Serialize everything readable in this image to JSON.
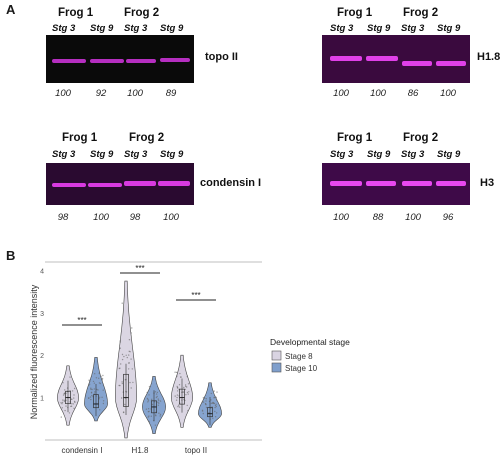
{
  "panel_a_label": "A",
  "panel_b_label": "B",
  "blots": [
    {
      "id": "topo",
      "frog1": "Frog 1",
      "frog2": "Frog 2",
      "lanes": [
        "Stg 3",
        "Stg 9",
        "Stg 3",
        "Stg 9"
      ],
      "protein": "topo II",
      "values": [
        "100",
        "92",
        "100",
        "89"
      ],
      "band_color": "#c030c8"
    },
    {
      "id": "h18",
      "frog1": "Frog 1",
      "frog2": "Frog 2",
      "lanes": [
        "Stg 3",
        "Stg 9",
        "Stg 3",
        "Stg 9"
      ],
      "protein": "H1.8",
      "values": [
        "100",
        "100",
        "86",
        "100"
      ],
      "band_color": "#e040e8"
    },
    {
      "id": "condensin",
      "frog1": "Frog 1",
      "frog2": "Frog 2",
      "lanes": [
        "Stg 3",
        "Stg 9",
        "Stg 3",
        "Stg 9"
      ],
      "protein": "condensin I",
      "values": [
        "98",
        "100",
        "98",
        "100"
      ],
      "band_color": "#d83ae0"
    },
    {
      "id": "h3",
      "frog1": "Frog 1",
      "frog2": "Frog 2",
      "lanes": [
        "Stg 3",
        "Stg 9",
        "Stg 3",
        "Stg 9"
      ],
      "protein": "H3",
      "values": [
        "100",
        "88",
        "100",
        "96"
      ],
      "band_color": "#e848f0"
    }
  ],
  "chart_data": {
    "type": "violin",
    "categories": [
      "condensin I",
      "H1.8",
      "topo II"
    ],
    "ylabel": "Normalized fluorescence intensity",
    "yticks": [
      1,
      2,
      3,
      4
    ],
    "ylim": [
      0,
      4.2
    ],
    "legend_title": "Developmental stage",
    "series": [
      {
        "name": "Stage 8",
        "color": "#d9d4e2",
        "medians": [
          1.0,
          1.0,
          1.0
        ],
        "ranges": [
          [
            0.35,
            1.75
          ],
          [
            0.05,
            3.75
          ],
          [
            0.3,
            2.0
          ]
        ]
      },
      {
        "name": "Stage 10",
        "color": "#7f9fcc",
        "medians": [
          0.85,
          0.78,
          0.62
        ],
        "ranges": [
          [
            0.45,
            1.95
          ],
          [
            0.15,
            1.5
          ],
          [
            0.3,
            1.35
          ]
        ]
      }
    ],
    "significance": [
      "***",
      "***",
      "***"
    ]
  }
}
